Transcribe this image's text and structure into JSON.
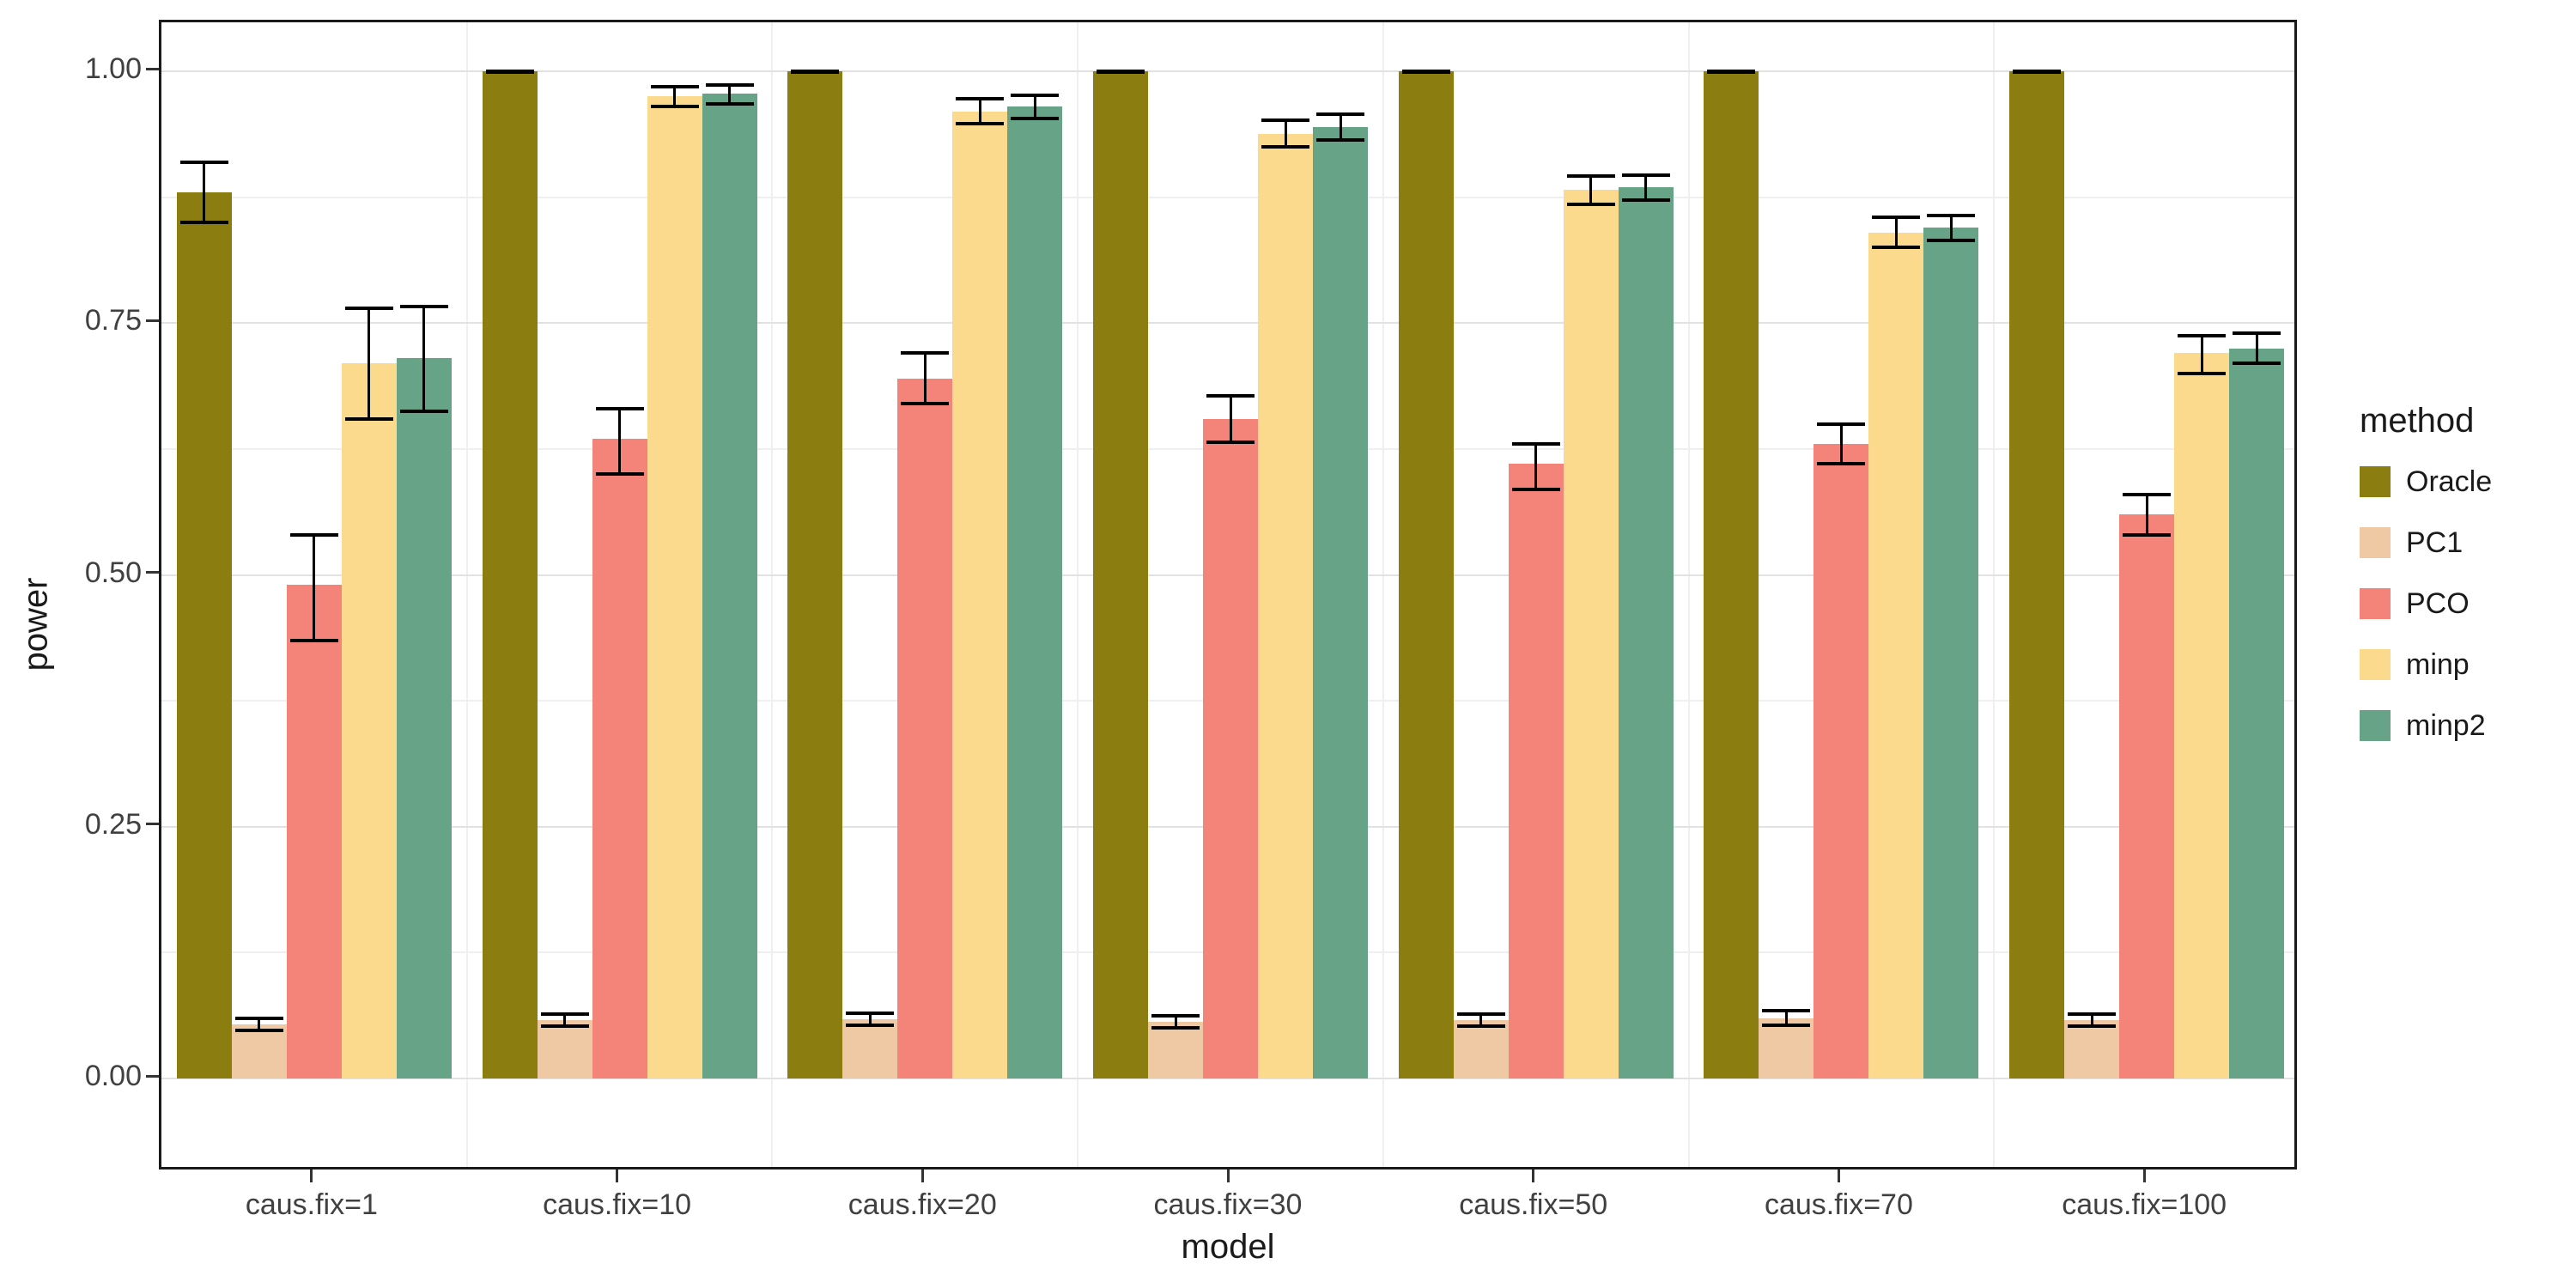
{
  "style": {
    "background": "#ffffff",
    "panel_border": "#1a1a1a",
    "grid_major": "#e2e2e2",
    "grid_minor": "#efefef",
    "axis_text": "#404040",
    "axis_title": "#1a1a1a",
    "tick_mark": "#333333",
    "error_bar": "#000000"
  },
  "chart_data": {
    "type": "bar",
    "title": "",
    "xlabel": "model",
    "ylabel": "power",
    "legend_title": "method",
    "legend_position": "right",
    "grid": true,
    "error_bars": true,
    "ylim": [
      0,
      1.0
    ],
    "y_major_ticks": [
      0,
      0.25,
      0.5,
      0.75,
      1.0
    ],
    "y_minor_ticks": [
      0.125,
      0.375,
      0.625,
      0.875
    ],
    "categories": [
      "caus.fix=1",
      "caus.fix=10",
      "caus.fix=20",
      "caus.fix=30",
      "caus.fix=50",
      "caus.fix=70",
      "caus.fix=100"
    ],
    "series": [
      {
        "name": "Oracle",
        "color": "#8B7D0F",
        "values": [
          0.88,
          1.0,
          1.0,
          1.0,
          1.0,
          1.0,
          1.0
        ],
        "err_lo": [
          0.85,
          0.9995,
          0.9995,
          0.9995,
          0.9995,
          0.9995,
          0.9995
        ],
        "err_hi": [
          0.91,
          1.0,
          1.0,
          1.0,
          1.0,
          1.0,
          1.0
        ]
      },
      {
        "name": "PC1",
        "color": "#EFC8A4",
        "values": [
          0.054,
          0.058,
          0.059,
          0.056,
          0.058,
          0.06,
          0.058
        ],
        "err_lo": [
          0.048,
          0.052,
          0.053,
          0.05,
          0.052,
          0.053,
          0.052
        ],
        "err_hi": [
          0.06,
          0.064,
          0.065,
          0.062,
          0.064,
          0.067,
          0.064
        ]
      },
      {
        "name": "PCO",
        "color": "#F48379",
        "values": [
          0.49,
          0.635,
          0.695,
          0.655,
          0.61,
          0.63,
          0.56
        ],
        "err_lo": [
          0.435,
          0.6,
          0.67,
          0.632,
          0.585,
          0.61,
          0.54
        ],
        "err_hi": [
          0.54,
          0.665,
          0.72,
          0.678,
          0.63,
          0.65,
          0.58
        ]
      },
      {
        "name": "minp",
        "color": "#FBD98D",
        "values": [
          0.71,
          0.975,
          0.96,
          0.938,
          0.882,
          0.84,
          0.72
        ],
        "err_lo": [
          0.655,
          0.965,
          0.948,
          0.925,
          0.868,
          0.825,
          0.7
        ],
        "err_hi": [
          0.765,
          0.985,
          0.973,
          0.951,
          0.896,
          0.855,
          0.737
        ]
      },
      {
        "name": "minp2",
        "color": "#66A387",
        "values": [
          0.715,
          0.978,
          0.965,
          0.945,
          0.885,
          0.845,
          0.725
        ],
        "err_lo": [
          0.662,
          0.968,
          0.953,
          0.932,
          0.872,
          0.832,
          0.71
        ],
        "err_hi": [
          0.766,
          0.986,
          0.976,
          0.957,
          0.897,
          0.857,
          0.74
        ]
      }
    ]
  }
}
